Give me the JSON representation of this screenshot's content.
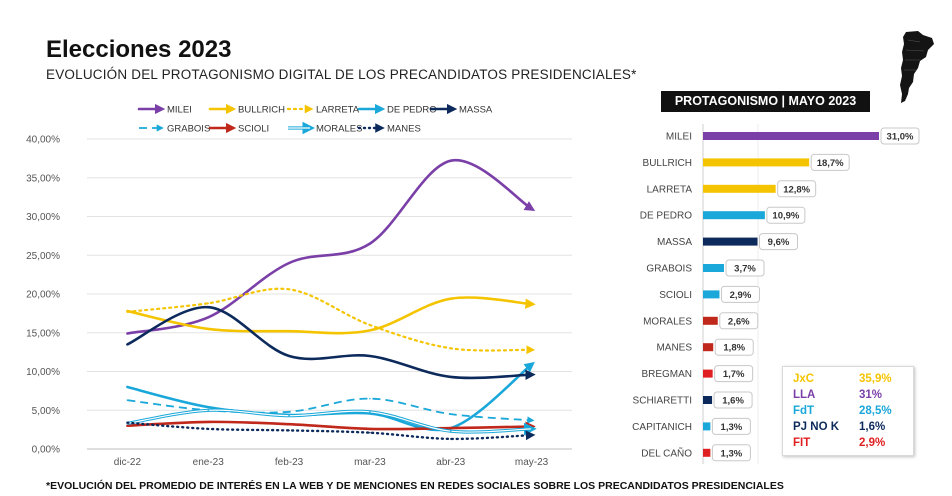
{
  "header": {
    "title": "Elecciones 2023",
    "subtitle": "EVOLUCIÓN DEL PROTAGONISMO DIGITAL DE LOS PRECANDIDATOS PRESIDENCIALES*",
    "footnote": "*EVOLUCIÓN DEL PROMEDIO DE INTERÉS EN LA WEB Y DE MENCIONES EN REDES SOCIALES SOBRE LOS PRECANDIDATOS PRESIDENCIALES"
  },
  "map": {
    "icon": "argentina-map-icon"
  },
  "protagonismo_title": "PROTAGONISMO | MAYO 2023",
  "summary": [
    {
      "label": "JxC",
      "value": "35,9%",
      "color": "#f5c400"
    },
    {
      "label": "LLA",
      "value": "31%",
      "color": "#7b3fa8"
    },
    {
      "label": "FdT",
      "value": "28,5%",
      "color": "#1aa7d9"
    },
    {
      "label": "PJ NO K",
      "value": "1,6%",
      "color": "#0d2a5c"
    },
    {
      "label": "FIT",
      "value": "2,9%",
      "color": "#e02020"
    }
  ],
  "chart_data": [
    {
      "type": "line",
      "title": "",
      "xlabel": "",
      "ylabel": "",
      "categories": [
        "dic-22",
        "ene-23",
        "feb-23",
        "mar-23",
        "abr-23",
        "may-23"
      ],
      "y_ticks": [
        "0,00%",
        "5,00%",
        "10,00%",
        "15,00%",
        "20,00%",
        "25,00%",
        "30,00%",
        "35,00%",
        "40,00%"
      ],
      "ylim": [
        0,
        40
      ],
      "grid": true,
      "legend_position": "top",
      "series": [
        {
          "name": "MILEI",
          "values": [
            14.9,
            17.0,
            24.0,
            26.5,
            37.2,
            31.0
          ],
          "color": "#7b3fa8",
          "style": "solid"
        },
        {
          "name": "BULLRICH",
          "values": [
            17.8,
            15.5,
            15.2,
            15.3,
            19.4,
            18.7
          ],
          "color": "#f5c400",
          "style": "solid"
        },
        {
          "name": "LARRETA",
          "values": [
            17.7,
            18.8,
            20.6,
            16.0,
            13.0,
            12.8
          ],
          "color": "#f5c400",
          "style": "dotted"
        },
        {
          "name": "DE PEDRO",
          "values": [
            8.0,
            5.4,
            4.4,
            4.6,
            2.7,
            10.9
          ],
          "color": "#1aa7d9",
          "style": "solid"
        },
        {
          "name": "MASSA",
          "values": [
            13.5,
            18.3,
            12.0,
            12.0,
            9.3,
            9.6
          ],
          "color": "#0d2a5c",
          "style": "solid"
        },
        {
          "name": "GRABOIS",
          "values": [
            6.3,
            5.0,
            4.8,
            6.5,
            4.5,
            3.7
          ],
          "color": "#1aa7d9",
          "style": "dashed"
        },
        {
          "name": "SCIOLI",
          "values": [
            3.0,
            3.5,
            3.2,
            2.6,
            2.7,
            2.9
          ],
          "color": "#c0281b",
          "style": "solid"
        },
        {
          "name": "MORALES",
          "values": [
            3.3,
            5.0,
            4.3,
            4.8,
            2.3,
            2.6
          ],
          "color": "#1aa7d9",
          "style": "double"
        },
        {
          "name": "MANES",
          "values": [
            3.4,
            2.6,
            2.4,
            2.1,
            1.3,
            1.8
          ],
          "color": "#0d2a5c",
          "style": "dots"
        }
      ]
    },
    {
      "type": "bar",
      "orientation": "horizontal",
      "title": "PROTAGONISMO | MAYO 2023",
      "categories": [
        "MILEI",
        "BULLRICH",
        "LARRETA",
        "DE PEDRO",
        "MASSA",
        "GRABOIS",
        "SCIOLI",
        "MORALES",
        "MANES",
        "BREGMAN",
        "SCHIARETTI",
        "CAPITANICH",
        "DEL CAÑO"
      ],
      "values": [
        31.0,
        18.7,
        12.8,
        10.9,
        9.6,
        3.7,
        2.9,
        2.6,
        1.8,
        1.7,
        1.6,
        1.3,
        1.3
      ],
      "labels": [
        "31,0%",
        "18,7%",
        "12,8%",
        "10,9%",
        "9,6%",
        "3,7%",
        "2,9%",
        "2,6%",
        "1,8%",
        "1,7%",
        "1,6%",
        "1,3%",
        "1,3%"
      ],
      "colors": [
        "#7b3fa8",
        "#f5c400",
        "#f5c400",
        "#1aa7d9",
        "#0d2a5c",
        "#1aa7d9",
        "#1aa7d9",
        "#c0281b",
        "#c0281b",
        "#e02020",
        "#0d2a5c",
        "#1aa7d9",
        "#e02020"
      ],
      "xlim": [
        0,
        31
      ]
    }
  ]
}
